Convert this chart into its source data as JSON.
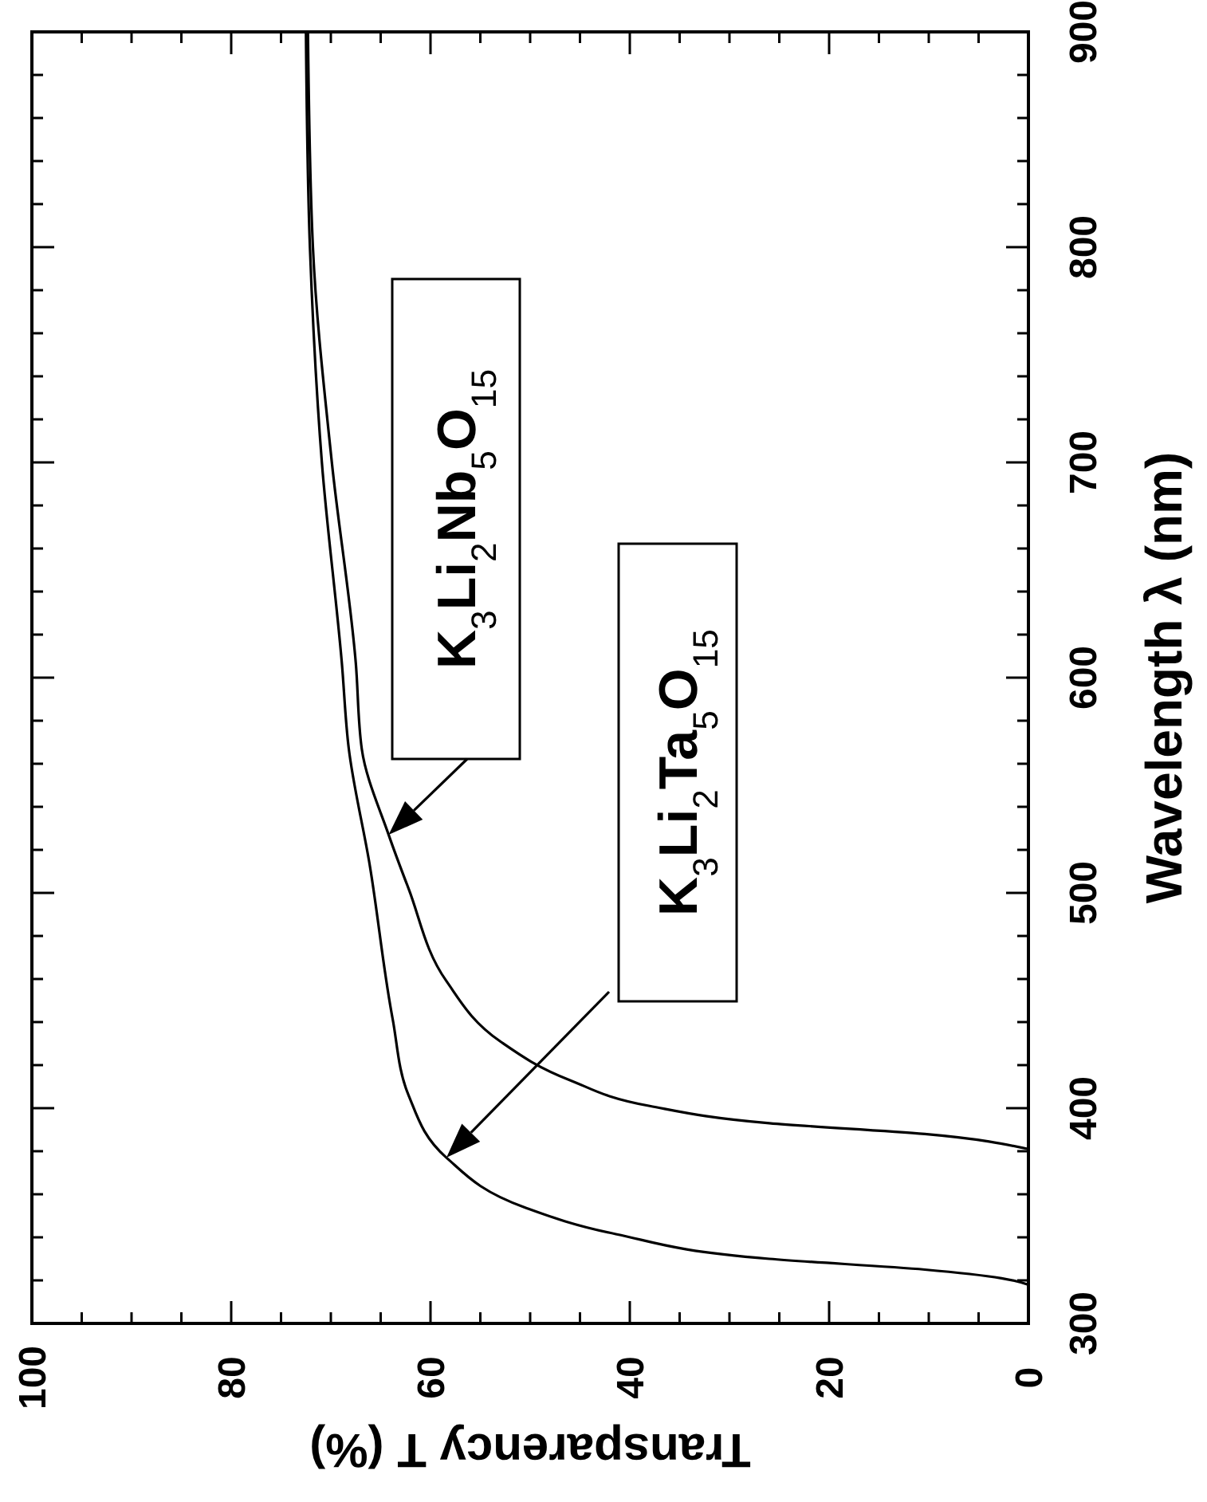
{
  "chart_data": {
    "type": "line",
    "xlabel": "Transparency T (%)",
    "ylabel": "Wavelength λ (nm)",
    "xlim": [
      100,
      0
    ],
    "ylim": [
      300,
      900
    ],
    "xticks": [
      100,
      {
        "value": 95,
        "label": null
      },
      {
        "value": 90,
        "label": null
      },
      {
        "value": 85,
        "label": null
      },
      80,
      {
        "value": 75,
        "label": null
      },
      {
        "value": 70,
        "label": null
      },
      {
        "value": 65,
        "label": null
      },
      60,
      {
        "value": 55,
        "label": null
      },
      {
        "value": 50,
        "label": null
      },
      {
        "value": 45,
        "label": null
      },
      40,
      {
        "value": 35,
        "label": null
      },
      {
        "value": 30,
        "label": null
      },
      {
        "value": 25,
        "label": null
      },
      20,
      {
        "value": 15,
        "label": null
      },
      {
        "value": 10,
        "label": null
      },
      {
        "value": 5,
        "label": null
      },
      0
    ],
    "yticks": [
      300,
      {
        "value": 320,
        "label": null
      },
      {
        "value": 340,
        "label": null
      },
      {
        "value": 360,
        "label": null
      },
      {
        "value": 380,
        "label": null
      },
      400,
      {
        "value": 420,
        "label": null
      },
      {
        "value": 440,
        "label": null
      },
      {
        "value": 460,
        "label": null
      },
      {
        "value": 480,
        "label": null
      },
      500,
      {
        "value": 520,
        "label": null
      },
      {
        "value": 540,
        "label": null
      },
      {
        "value": 560,
        "label": null
      },
      {
        "value": 580,
        "label": null
      },
      600,
      {
        "value": 620,
        "label": null
      },
      {
        "value": 640,
        "label": null
      },
      {
        "value": 660,
        "label": null
      },
      {
        "value": 680,
        "label": null
      },
      700,
      {
        "value": 720,
        "label": null
      },
      {
        "value": 740,
        "label": null
      },
      {
        "value": 760,
        "label": null
      },
      {
        "value": 780,
        "label": null
      },
      800,
      {
        "value": 820,
        "label": null
      },
      {
        "value": 840,
        "label": null
      },
      {
        "value": 860,
        "label": null
      },
      {
        "value": 880,
        "label": null
      },
      900
    ],
    "series": [
      {
        "name": "K$_{3}$Li$_{2}$Nb$_{5}$O$_{15}$",
        "color": "#000000",
        "x": [
          0,
          10.4,
          26,
          38,
          46,
          53,
          58.4,
          62.2,
          64.2,
          66.9,
          67.5,
          69.9,
          71.8,
          72.3
        ],
        "values": [
          381,
          388,
          393,
          401,
          413,
          431,
          459,
          502,
          527,
          567,
          607,
          700,
          800,
          900
        ]
      },
      {
        "name": "K$_{3}$Li$_{2}$Ta$_{5}$O$_{15}$",
        "color": "#000000",
        "x": [
          0,
          2.7,
          10.4,
          26,
          41.4,
          50.6,
          58.4,
          62.2,
          63.8,
          66.1,
          68.2,
          68.9,
          70.9,
          72.1,
          72.5
        ],
        "values": [
          318,
          321,
          325,
          330,
          341.5,
          354,
          377,
          406,
          441.5,
          513,
          567,
          607,
          700,
          800,
          900
        ]
      }
    ]
  }
}
